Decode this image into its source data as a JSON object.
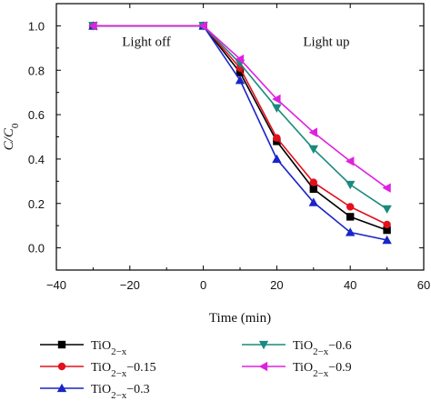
{
  "chart_data": {
    "type": "line",
    "xlabel": "Time (min)",
    "ylabel": "C/C0",
    "xlim": [
      -40,
      60
    ],
    "ylim": [
      -0.1,
      1.1
    ],
    "xticks": [
      -40,
      -20,
      0,
      20,
      40,
      60
    ],
    "yticks": [
      0.0,
      0.2,
      0.4,
      0.6,
      0.8,
      1.0
    ],
    "xtick_labels": [
      "−40",
      "−20",
      "0",
      "20",
      "40",
      "60"
    ],
    "ytick_labels": [
      "0.0",
      "0.2",
      "0.4",
      "0.6",
      "0.8",
      "1.0"
    ],
    "grid": false,
    "x": [
      -30,
      0,
      10,
      20,
      30,
      40,
      50
    ],
    "annotations": [
      {
        "text": "Light off",
        "x": -15.5,
        "y": 0.91
      },
      {
        "text": "Light up",
        "x": 33.5,
        "y": 0.91
      }
    ],
    "legend_placement": "below",
    "series": [
      {
        "name": "TiO2−x",
        "color": "#000000",
        "marker": "square",
        "values": [
          1.0,
          1.0,
          0.79,
          0.48,
          0.265,
          0.14,
          0.08
        ]
      },
      {
        "name": "TiO2−x−0.15",
        "color": "#e3101b",
        "marker": "circle",
        "values": [
          1.0,
          1.0,
          0.81,
          0.495,
          0.295,
          0.185,
          0.105
        ]
      },
      {
        "name": "TiO2−x−0.3",
        "color": "#1a24c8",
        "marker": "triangle-up",
        "values": [
          1.0,
          1.0,
          0.755,
          0.4,
          0.205,
          0.07,
          0.035
        ]
      },
      {
        "name": "TiO2−x−0.6",
        "color": "#1a8a7e",
        "marker": "triangle-down",
        "values": [
          1.0,
          1.0,
          0.83,
          0.63,
          0.445,
          0.285,
          0.175
        ]
      },
      {
        "name": "TiO2−x−0.9",
        "color": "#e020e0",
        "marker": "triangle-left",
        "values": [
          1.0,
          1.0,
          0.85,
          0.67,
          0.52,
          0.39,
          0.27
        ]
      }
    ]
  }
}
